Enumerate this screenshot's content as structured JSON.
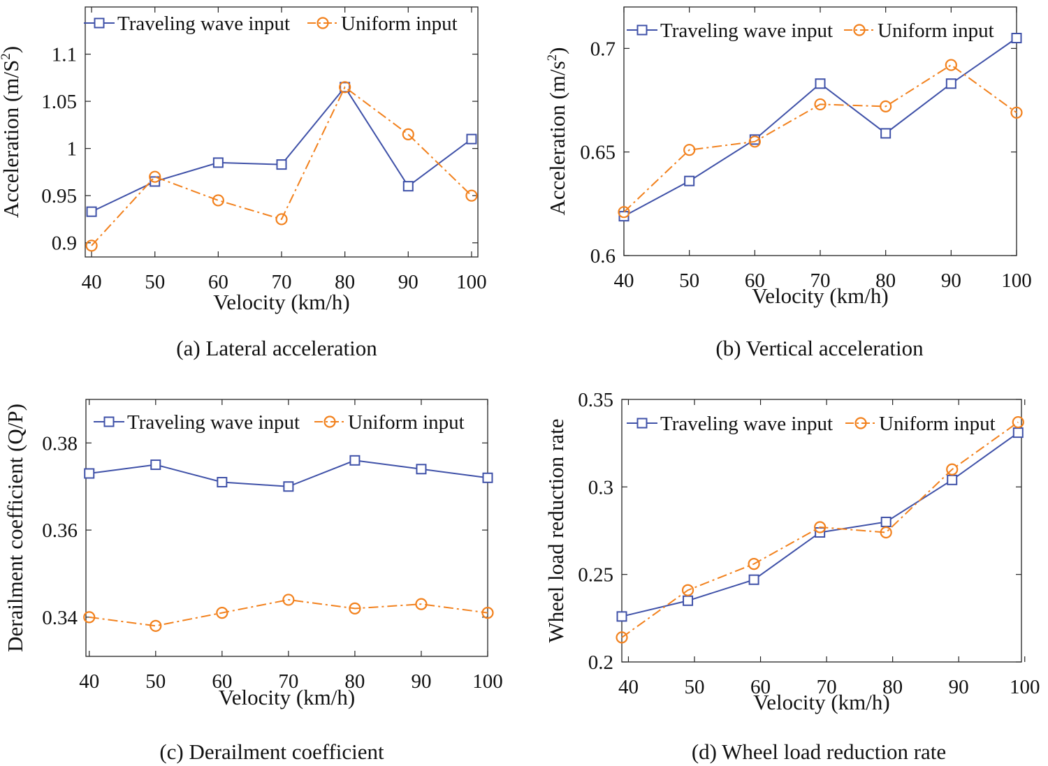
{
  "colors": {
    "traveling": "#3F51A8",
    "uniform": "#F2811D",
    "axis": "#222222"
  },
  "chart_data": [
    {
      "type": "line",
      "caption": "(a) Lateral acceleration",
      "xlabel": "Velocity (km/h)",
      "ylabel": "Acceleration (m/S",
      "ylabel_sup": "2",
      "ylabel_close": ")",
      "xlim": [
        39,
        101
      ],
      "ylim": [
        0.885,
        1.15
      ],
      "xticks": [
        40,
        50,
        60,
        70,
        80,
        90,
        100
      ],
      "xtick_labels": [
        "40",
        "50",
        "60",
        "70",
        "80",
        "90",
        "100"
      ],
      "yticks": [
        0.9,
        0.95,
        1.0,
        1.05,
        1.1
      ],
      "ytick_labels": [
        "0.9",
        "0.95",
        "1",
        "1.05",
        "1.1"
      ],
      "x": [
        40,
        50,
        60,
        70,
        80,
        90,
        100
      ],
      "legend": "top",
      "series": [
        {
          "name": "Traveling wave input",
          "values": [
            0.933,
            0.965,
            0.985,
            0.983,
            1.065,
            0.96,
            1.01
          ]
        },
        {
          "name": "Uniform input",
          "values": [
            0.897,
            0.97,
            0.945,
            0.925,
            1.065,
            1.015,
            0.95
          ]
        }
      ]
    },
    {
      "type": "line",
      "caption": "(b) Vertical acceleration",
      "xlabel": "Velocity (km/h)",
      "ylabel": "Acceleration (m/s",
      "ylabel_sup": "2",
      "ylabel_close": ")",
      "xlim": [
        40,
        100
      ],
      "ylim": [
        0.6,
        0.72
      ],
      "xticks": [
        40,
        50,
        60,
        70,
        80,
        90,
        100
      ],
      "xtick_labels": [
        "40",
        "50",
        "60",
        "70",
        "80",
        "90",
        "100"
      ],
      "yticks": [
        0.6,
        0.65,
        0.7
      ],
      "ytick_labels": [
        "0.6",
        "0.65",
        "0.7"
      ],
      "x": [
        40,
        50,
        60,
        70,
        80,
        90,
        100
      ],
      "legend": "top",
      "series": [
        {
          "name": "Traveling wave input",
          "values": [
            0.619,
            0.636,
            0.656,
            0.683,
            0.659,
            0.683,
            0.705
          ]
        },
        {
          "name": "Uniform input",
          "values": [
            0.621,
            0.651,
            0.655,
            0.673,
            0.672,
            0.692,
            0.669
          ]
        }
      ]
    },
    {
      "type": "line",
      "caption": "(c) Derailment coefficient",
      "xlabel": "Velocity (km/h)",
      "ylabel": "Derailment coefficient (Q/P)",
      "xlim": [
        39.5,
        100
      ],
      "ylim": [
        0.331,
        0.39
      ],
      "xticks": [
        40,
        50,
        60,
        70,
        80,
        90,
        100
      ],
      "xtick_labels": [
        "40",
        "50",
        "60",
        "70",
        "80",
        "90",
        "100"
      ],
      "yticks": [
        0.34,
        0.36,
        0.38
      ],
      "ytick_labels": [
        "0.34",
        "0.36",
        "0.38"
      ],
      "x": [
        40,
        50,
        60,
        70,
        80,
        90,
        100
      ],
      "legend": "top",
      "series": [
        {
          "name": "Traveling wave input",
          "values": [
            0.373,
            0.375,
            0.371,
            0.37,
            0.376,
            0.374,
            0.372
          ]
        },
        {
          "name": "Uniform input",
          "values": [
            0.34,
            0.338,
            0.341,
            0.344,
            0.342,
            0.343,
            0.341
          ]
        }
      ]
    },
    {
      "type": "line",
      "caption": "(d) Wheel load reduction rate",
      "xlabel": "Velocity (km/h)",
      "ylabel": "Wheel load reduction rate",
      "xlim": [
        39,
        99.5
      ],
      "ylim": [
        0.2,
        0.35
      ],
      "xticks": [
        40,
        50,
        60,
        70,
        80,
        90,
        100
      ],
      "xtick_labels": [
        "40",
        "50",
        "60",
        "70",
        "80",
        "90",
        "100"
      ],
      "yticks": [
        0.2,
        0.25,
        0.3,
        0.35
      ],
      "ytick_labels": [
        "0.2",
        "0.25",
        "0.3",
        "0.35"
      ],
      "x": [
        39,
        49,
        59,
        69,
        79,
        89,
        99
      ],
      "legend": "top",
      "series": [
        {
          "name": "Traveling wave input",
          "values": [
            0.226,
            0.235,
            0.247,
            0.274,
            0.28,
            0.304,
            0.331
          ]
        },
        {
          "name": "Uniform input",
          "values": [
            0.214,
            0.241,
            0.256,
            0.277,
            0.274,
            0.31,
            0.337
          ]
        }
      ]
    }
  ]
}
